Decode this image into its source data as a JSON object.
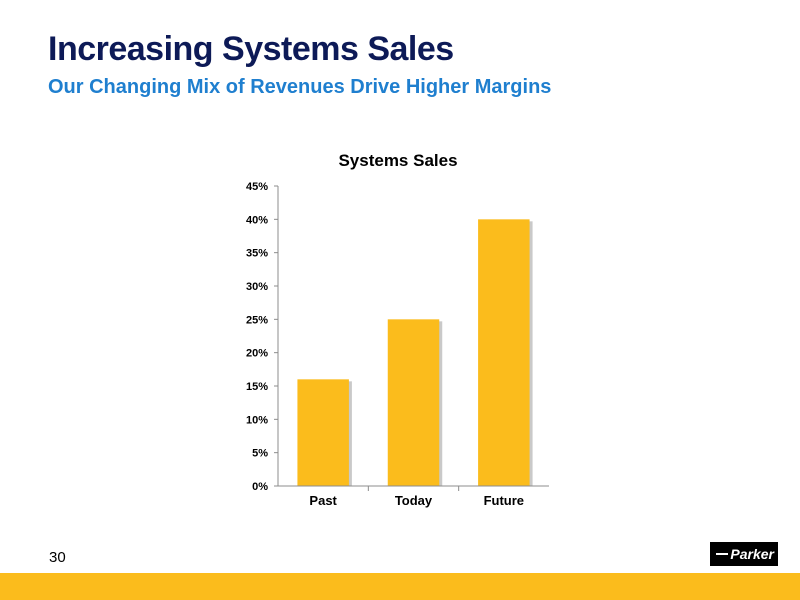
{
  "slide": {
    "title": "Increasing Systems Sales",
    "subtitle": "Our Changing Mix of Revenues Drive Higher Margins",
    "page_number": "30",
    "logo_text": "Parker"
  },
  "colors": {
    "title": "#0d1a57",
    "subtitle": "#1f7fcf",
    "bar": "#fbbc1c",
    "footer_band": "#fbbc1c"
  },
  "chart_data": {
    "type": "bar",
    "title": "Systems Sales",
    "categories": [
      "Past",
      "Today",
      "Future"
    ],
    "values": [
      16,
      25,
      40
    ],
    "ylim": [
      0,
      45
    ],
    "yticks": [
      0,
      5,
      10,
      15,
      20,
      25,
      30,
      35,
      40,
      45
    ],
    "ytick_labels": [
      "0%",
      "5%",
      "10%",
      "15%",
      "20%",
      "25%",
      "30%",
      "35%",
      "40%",
      "45%"
    ],
    "xlabel": "",
    "ylabel": "",
    "grid": false,
    "legend": false
  }
}
